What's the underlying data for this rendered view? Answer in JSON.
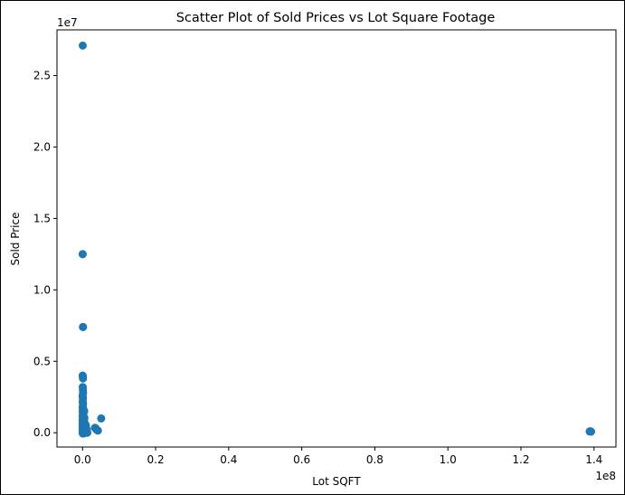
{
  "chart_data": {
    "type": "scatter",
    "title": "Scatter Plot of Sold Prices vs Lot Square Footage",
    "xlabel": "Lot SQFT",
    "ylabel": "Sold Price",
    "x_offset_label": "1e8",
    "y_offset_label": "1e7",
    "x_ticks": [
      0.0,
      0.2,
      0.4,
      0.6,
      0.8,
      1.0,
      1.2,
      1.4
    ],
    "x_tick_labels": [
      "0.0",
      "0.2",
      "0.4",
      "0.6",
      "0.8",
      "1.0",
      "1.2",
      "1.4"
    ],
    "y_ticks": [
      0.0,
      0.5,
      1.0,
      1.5,
      2.0,
      2.5
    ],
    "y_tick_labels": [
      "0.0",
      "0.5",
      "1.0",
      "1.5",
      "2.0",
      "2.5"
    ],
    "xlim": [
      -0.07,
      1.46
    ],
    "ylim": [
      -0.1,
      2.82
    ],
    "grid": false,
    "marker_color": "#1f77b4",
    "series": [
      {
        "points": [
          [
            0.0005,
            2.71
          ],
          [
            0.0002,
            1.25
          ],
          [
            0.0004,
            1.25
          ],
          [
            0.001,
            0.74
          ],
          [
            0.0014,
            0.74
          ],
          [
            0.0003,
            0.4
          ],
          [
            0.0008,
            0.39
          ],
          [
            0.0012,
            0.38
          ],
          [
            0.0005,
            0.32
          ],
          [
            0.001,
            0.3
          ],
          [
            0.0015,
            0.28
          ],
          [
            0.0002,
            0.26
          ],
          [
            0.0006,
            0.25
          ],
          [
            0.0011,
            0.24
          ],
          [
            0.0004,
            0.22
          ],
          [
            0.0009,
            0.21
          ],
          [
            0.0013,
            0.2
          ],
          [
            0.0003,
            0.18
          ],
          [
            0.0007,
            0.17
          ],
          [
            0.0012,
            0.16
          ],
          [
            0.0018,
            0.17
          ],
          [
            0.0005,
            0.15
          ],
          [
            0.001,
            0.14
          ],
          [
            0.0016,
            0.15
          ],
          [
            0.0022,
            0.14
          ],
          [
            0.003,
            0.16
          ],
          [
            0.0045,
            0.15
          ],
          [
            0.0002,
            0.12
          ],
          [
            0.0006,
            0.11
          ],
          [
            0.001,
            0.12
          ],
          [
            0.0014,
            0.1
          ],
          [
            0.002,
            0.11
          ],
          [
            0.0026,
            0.12
          ],
          [
            0.0033,
            0.1
          ],
          [
            0.0003,
            0.09
          ],
          [
            0.0008,
            0.08
          ],
          [
            0.0013,
            0.09
          ],
          [
            0.0019,
            0.08
          ],
          [
            0.0025,
            0.09
          ],
          [
            0.0031,
            0.08
          ],
          [
            0.004,
            0.09
          ],
          [
            0.0002,
            0.07
          ],
          [
            0.0006,
            0.06
          ],
          [
            0.0011,
            0.07
          ],
          [
            0.0016,
            0.06
          ],
          [
            0.0022,
            0.07
          ],
          [
            0.0028,
            0.06
          ],
          [
            0.0036,
            0.07
          ],
          [
            0.0048,
            0.06
          ],
          [
            0.006,
            0.05
          ],
          [
            0.0075,
            0.06
          ],
          [
            0.009,
            0.05
          ],
          [
            0.0004,
            0.05
          ],
          [
            0.0009,
            0.04
          ],
          [
            0.0014,
            0.05
          ],
          [
            0.002,
            0.04
          ],
          [
            0.0027,
            0.05
          ],
          [
            0.0034,
            0.04
          ],
          [
            0.0042,
            0.05
          ],
          [
            0.0055,
            0.04
          ],
          [
            0.0002,
            0.03
          ],
          [
            0.0007,
            0.02
          ],
          [
            0.0012,
            0.03
          ],
          [
            0.0017,
            0.02
          ],
          [
            0.0023,
            0.03
          ],
          [
            0.003,
            0.02
          ],
          [
            0.0038,
            0.03
          ],
          [
            0.005,
            0.02
          ],
          [
            0.0065,
            0.03
          ],
          [
            0.008,
            0.02
          ],
          [
            0.01,
            0.03
          ],
          [
            0.012,
            0.02
          ],
          [
            0.0003,
            0.01
          ],
          [
            0.0008,
            0.0
          ],
          [
            0.0013,
            0.01
          ],
          [
            0.0018,
            0.0
          ],
          [
            0.0025,
            0.01
          ],
          [
            0.0032,
            0.0
          ],
          [
            0.004,
            0.01
          ],
          [
            0.0052,
            0.0
          ],
          [
            0.0068,
            0.01
          ],
          [
            0.0085,
            0.0
          ],
          [
            0.0105,
            0.01
          ],
          [
            0.013,
            0.0
          ],
          [
            0.0005,
            -0.005
          ],
          [
            0.0015,
            -0.005
          ],
          [
            0.0028,
            -0.005
          ],
          [
            0.005,
            0.105
          ],
          [
            0.034,
            0.035
          ],
          [
            0.036,
            0.03
          ],
          [
            0.038,
            0.022
          ],
          [
            0.04,
            0.018
          ],
          [
            0.042,
            0.015
          ],
          [
            0.051,
            0.1
          ],
          [
            1.39,
            0.01
          ],
          [
            1.392,
            0.008
          ],
          [
            1.388,
            0.009
          ]
        ]
      }
    ]
  }
}
